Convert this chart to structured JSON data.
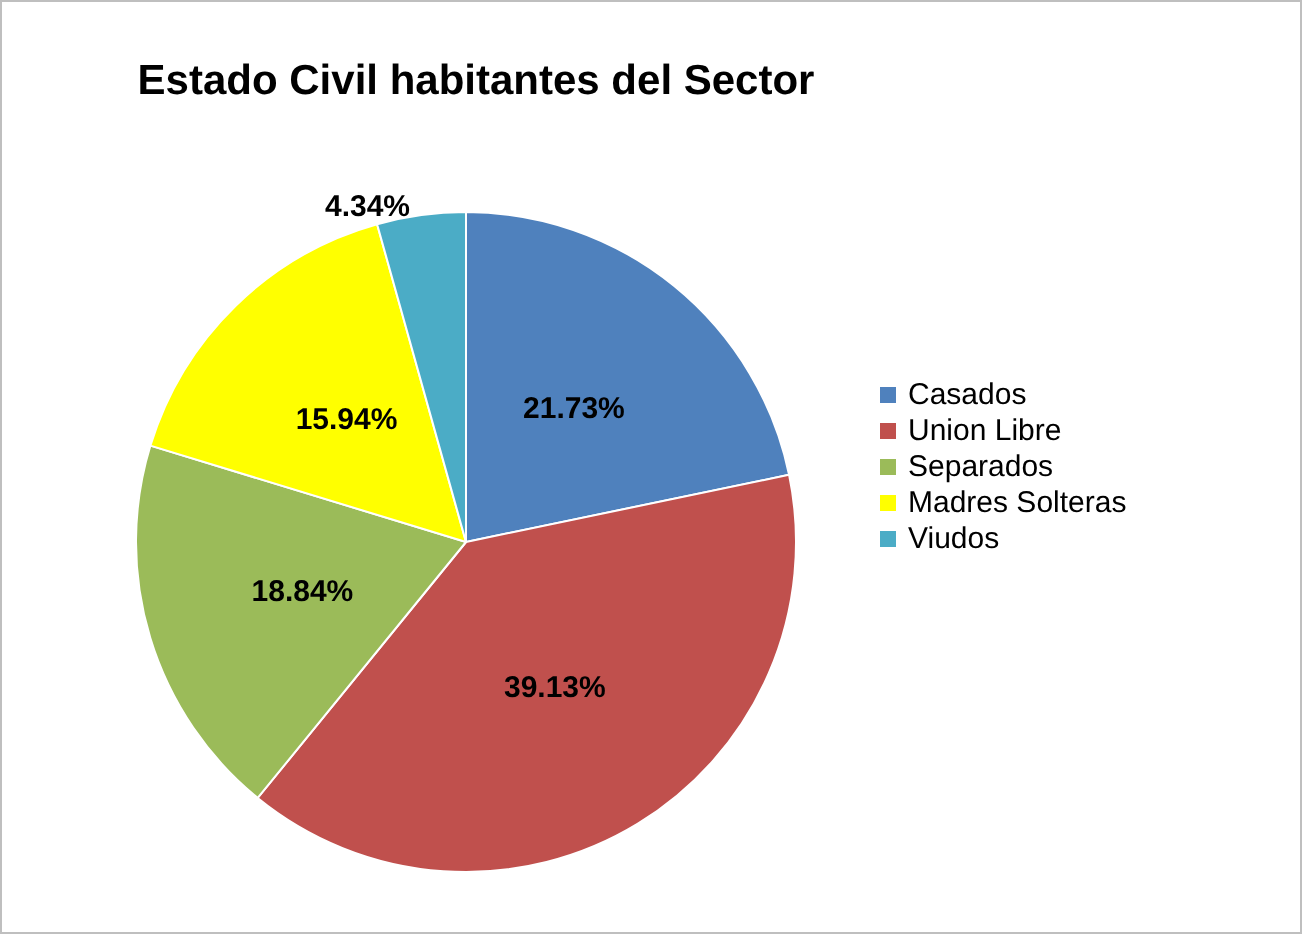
{
  "chart_data": {
    "type": "pie",
    "title": "Estado Civil habitantes del Sector",
    "categories": [
      "Casados",
      "Union Libre",
      "Separados",
      "Madres Solteras",
      "Viudos"
    ],
    "values": [
      21.73,
      39.13,
      18.84,
      15.94,
      4.34
    ],
    "value_labels": [
      "21.73%",
      "39.13%",
      "18.84%",
      "15.94%",
      "4.34%"
    ],
    "colors": [
      "#4f81bd",
      "#c0504d",
      "#9bbb59",
      "#ffff00",
      "#4bacc6"
    ],
    "legend": "right"
  }
}
